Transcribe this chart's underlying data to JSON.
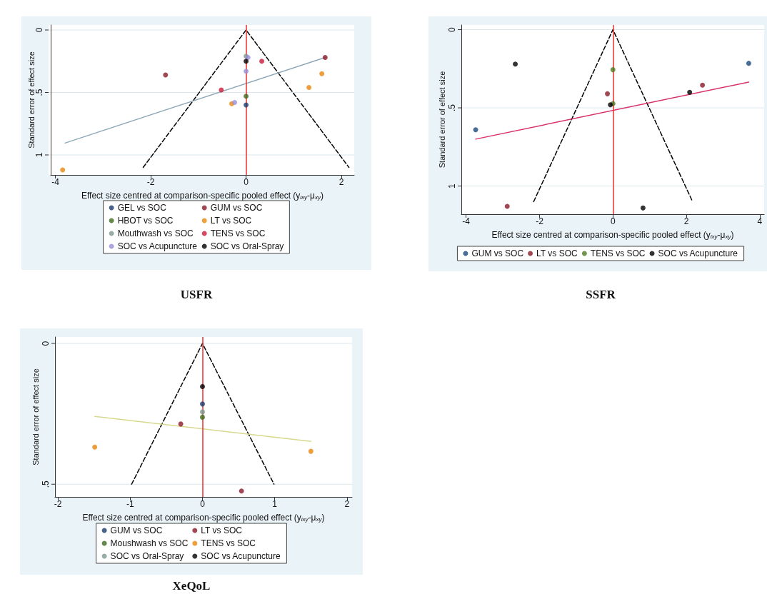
{
  "chart_data": [
    {
      "type": "scatter",
      "title": "USFR",
      "xlabel": "Effect size centred at comparison-specific pooled effect (y$_{ixy}$-μ$_{xy}$)",
      "ylabel": "Standard error of effect size",
      "xlim": [
        -4.1,
        2.27
      ],
      "ylim": [
        1.16,
        -0.04
      ],
      "xticks": [
        -4,
        -2,
        0,
        2
      ],
      "yticks": [
        {
          "value": 0,
          "label": "0"
        },
        {
          "value": 0.5,
          "label": ".5"
        },
        {
          "value": 1,
          "label": "1"
        }
      ],
      "grid": "y",
      "legend": "bottom",
      "marker": "circle",
      "ref_lines": [
        {
          "axis": "x",
          "value": 0,
          "color": "#e8302f"
        }
      ],
      "series": [
        {
          "name": "GEL vs SOC",
          "color": "#1a3b6e",
          "x": [
            0
          ],
          "values": [
            0.6
          ]
        },
        {
          "name": "GUM vs SOC",
          "color": "#8b1a2b",
          "x": [
            -1.69,
            1.66
          ],
          "values": [
            0.36,
            0.22
          ]
        },
        {
          "name": "HBOT vs SOC",
          "color": "#3d6b1e",
          "x": [
            0
          ],
          "values": [
            0.53
          ]
        },
        {
          "name": "LT vs SOC",
          "color": "#e8860c",
          "x": [
            -3.85,
            1.59,
            1.32,
            -0.3
          ],
          "values": [
            1.12,
            0.35,
            0.46,
            0.59
          ]
        },
        {
          "name": "Mouthwash vs SOC",
          "color": "#7d9a8f",
          "x": [
            0
          ],
          "values": [
            0.21
          ]
        },
        {
          "name": "TENS vs SOC",
          "color": "#cc1a3a",
          "x": [
            -0.52,
            0.33
          ],
          "values": [
            0.48,
            0.25
          ]
        },
        {
          "name": "SOC vs Acupuncture",
          "color": "#9a8fd8",
          "x": [
            -0.24,
            0,
            0.04
          ],
          "values": [
            0.58,
            0.33,
            0.22
          ]
        },
        {
          "name": "SOC vs Oral-Spray",
          "color": "#000000",
          "x": [
            0
          ],
          "values": [
            0.25
          ]
        },
        {
          "type": "line",
          "color": "#000000",
          "line_style": "dashed",
          "marker": "none",
          "x": [
            -2.16,
            0,
            2.16
          ],
          "values": [
            1.1,
            0,
            1.1
          ]
        },
        {
          "type": "line",
          "color": "#8fa8b8",
          "line_style": "solid",
          "marker": "none",
          "x": [
            -3.8,
            1.66
          ],
          "values": [
            0.905,
            0.22
          ]
        }
      ]
    },
    {
      "type": "scatter",
      "title": "SSFR",
      "xlabel": "Effect size centred at comparison-specific pooled effect (y$_{ixy}$-μ$_{xy}$)",
      "ylabel": "Standard error of effect size",
      "xlim": [
        -4.13,
        4.12
      ],
      "ylim": [
        1.18,
        -0.03
      ],
      "xticks": [
        -4,
        -2,
        0,
        2,
        4
      ],
      "yticks": [
        {
          "value": 0,
          "label": "0"
        },
        {
          "value": 0.5,
          "label": ".5"
        },
        {
          "value": 1,
          "label": "1"
        }
      ],
      "grid": "y",
      "legend": "bottom",
      "marker": "circle",
      "ref_lines": [
        {
          "axis": "x",
          "value": 0,
          "color": "#e8302f"
        }
      ],
      "series": [
        {
          "name": "GUM vs SOC",
          "color": "#1a4a7a",
          "x": [
            -3.74,
            3.7
          ],
          "values": [
            0.64,
            0.215
          ]
        },
        {
          "name": "LT vs SOC",
          "color": "#8b1a2b",
          "x": [
            -2.88,
            -0.15,
            2.44
          ],
          "values": [
            1.13,
            0.41,
            0.355
          ]
        },
        {
          "name": "TENS vs SOC",
          "color": "#4d7a1e",
          "x": [
            0,
            0
          ],
          "values": [
            0.256,
            0.473
          ]
        },
        {
          "name": "SOC vs Acupuncture",
          "color": "#000000",
          "x": [
            -2.66,
            -0.07,
            2.09,
            0.82
          ],
          "values": [
            0.22,
            0.48,
            0.4,
            1.14
          ]
        },
        {
          "type": "line",
          "color": "#000000",
          "line_style": "dashed",
          "marker": "none",
          "x": [
            -2.16,
            0,
            2.17
          ],
          "values": [
            1.1,
            0,
            1.1
          ]
        },
        {
          "type": "line",
          "color": "#d9306a",
          "line_style": "solid",
          "marker": "none",
          "x": [
            -3.74,
            3.7
          ],
          "values": [
            0.7,
            0.335
          ]
        }
      ]
    },
    {
      "type": "scatter",
      "title": "XeQoL",
      "xlabel": "Effect size centred at comparison-specific pooled effect (y$_{ixy}$-μ$_{xy}$)",
      "ylabel": "Standard error of effect size",
      "xlim": [
        -2.04,
        2.07
      ],
      "ylim": [
        0.545,
        -0.023
      ],
      "xticks": [
        -2,
        -1,
        0,
        1,
        2
      ],
      "yticks": [
        {
          "value": 0,
          "label": "0"
        },
        {
          "value": 0.5,
          "label": ".5"
        }
      ],
      "grid": "y",
      "legend": "bottom",
      "marker": "circle",
      "ref_lines": [
        {
          "axis": "x",
          "value": 0,
          "color": "#e8302f"
        }
      ],
      "series": [
        {
          "name": "GUM vs SOC",
          "color": "#1a3b6e",
          "x": [
            0
          ],
          "values": [
            0.215
          ]
        },
        {
          "name": "LT vs SOC",
          "color": "#8b1a2b",
          "x": [
            -0.3,
            0.54
          ],
          "values": [
            0.286,
            0.524
          ]
        },
        {
          "name": "Moushwash vs SOC",
          "color": "#3d6b1e",
          "x": [
            0
          ],
          "values": [
            0.262
          ]
        },
        {
          "name": "TENS vs SOC",
          "color": "#e8860c",
          "x": [
            -1.49,
            1.5
          ],
          "values": [
            0.368,
            0.383
          ]
        },
        {
          "name": "SOC vs Oral-Spray",
          "color": "#7d9a8f",
          "x": [
            0
          ],
          "values": [
            0.243
          ]
        },
        {
          "name": "SOC vs Acupuncture",
          "color": "#000000",
          "x": [
            0
          ],
          "values": [
            0.153
          ]
        },
        {
          "type": "line",
          "color": "#000000",
          "line_style": "dashed",
          "marker": "none",
          "x": [
            -0.98,
            0,
            0.99
          ],
          "values": [
            0.5,
            0,
            0.5
          ]
        },
        {
          "type": "line",
          "color": "#d8d890",
          "line_style": "solid",
          "marker": "none",
          "x": [
            -1.49,
            1.5
          ],
          "values": [
            0.259,
            0.348
          ]
        }
      ]
    }
  ]
}
